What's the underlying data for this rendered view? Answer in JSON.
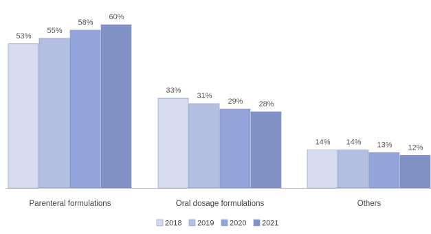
{
  "chart_data": {
    "type": "bar",
    "categories": [
      "Parenteral formulations",
      "Oral dosage formulations",
      "Others"
    ],
    "series": [
      {
        "name": "2018",
        "values": [
          53,
          33,
          14
        ],
        "labels": [
          "53%",
          "33%",
          "14%"
        ],
        "color": "#d5dcee"
      },
      {
        "name": "2019",
        "values": [
          55,
          31,
          14
        ],
        "labels": [
          "55%",
          "31%",
          "14%"
        ],
        "color": "#b3c0e2"
      },
      {
        "name": "2020",
        "values": [
          58,
          29,
          13
        ],
        "labels": [
          "58%",
          "29%",
          "13%"
        ],
        "color": "#93a5d8"
      },
      {
        "name": "2021",
        "values": [
          60,
          28,
          12
        ],
        "labels": [
          "60%",
          "28%",
          "12%"
        ],
        "color": "#8091c4"
      }
    ],
    "title": "",
    "xlabel": "",
    "ylabel": "",
    "ylim": [
      0,
      60
    ],
    "grid": false,
    "legend_position": "bottom-center",
    "axis_color": "#bfbfbf"
  }
}
